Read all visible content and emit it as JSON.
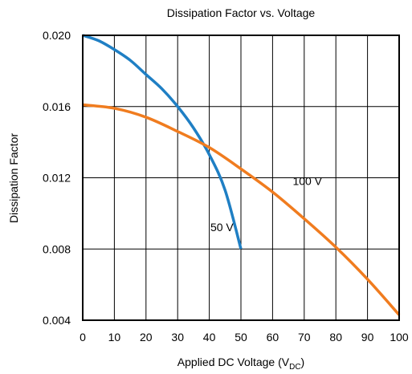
{
  "chart_data": {
    "type": "line",
    "title": "Dissipation Factor vs. Voltage",
    "xlabel": {
      "main": "Applied DC Voltage (V",
      "sub": "DC",
      "end": ")"
    },
    "ylabel": "Dissipation Factor",
    "xlim": [
      0,
      100
    ],
    "ylim": [
      0.004,
      0.02
    ],
    "x_ticks": [
      "0",
      "10",
      "20",
      "30",
      "40",
      "50",
      "60",
      "70",
      "80",
      "90",
      "100"
    ],
    "y_ticks": [
      "0.004",
      "0.008",
      "0.012",
      "0.016",
      "0.020"
    ],
    "grid": true,
    "series": [
      {
        "name": "50 V",
        "color": "#1f7fc4",
        "x": [
          0,
          5,
          10,
          15,
          20,
          25,
          30,
          35,
          40,
          45,
          50
        ],
        "y": [
          0.02,
          0.0197,
          0.0192,
          0.0186,
          0.0178,
          0.017,
          0.016,
          0.0148,
          0.0133,
          0.0113,
          0.008
        ]
      },
      {
        "name": "100 V",
        "color": "#f07c1f",
        "x": [
          0,
          10,
          20,
          30,
          40,
          50,
          60,
          70,
          80,
          90,
          100
        ],
        "y": [
          0.0161,
          0.0159,
          0.0154,
          0.0146,
          0.0137,
          0.0125,
          0.0112,
          0.0097,
          0.0081,
          0.0063,
          0.0043
        ]
      }
    ],
    "annotations": [
      {
        "text": "50 V",
        "x": 44,
        "y": 0.009
      },
      {
        "text": "100 V",
        "x": 71,
        "y": 0.0116
      }
    ]
  }
}
